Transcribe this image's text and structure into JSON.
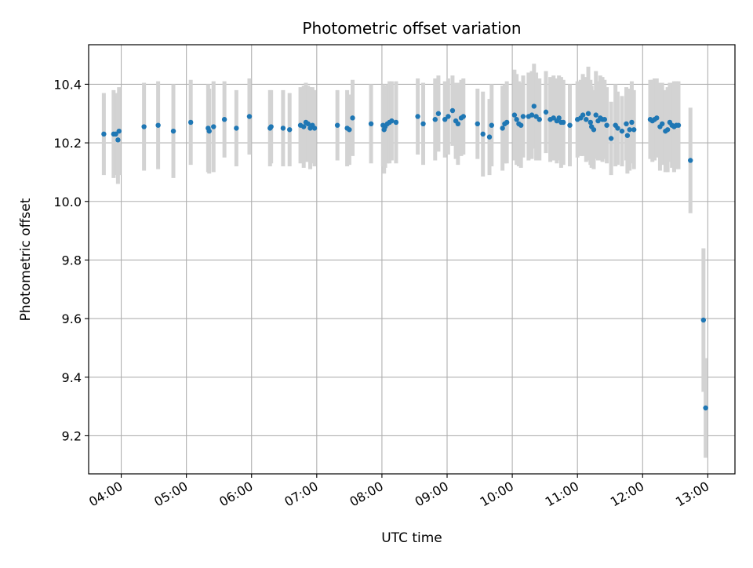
{
  "chart_data": {
    "type": "scatter",
    "title": "Photometric offset variation",
    "xlabel": "UTC time",
    "ylabel": "Photometric offset",
    "x_unit": "hours UTC",
    "xlim": [
      "03:30",
      "13:25"
    ],
    "ylim": [
      9.07,
      10.535
    ],
    "x_ticks": [
      "04:00",
      "05:00",
      "06:00",
      "07:00",
      "08:00",
      "09:00",
      "10:00",
      "11:00",
      "12:00",
      "13:00"
    ],
    "y_ticks": [
      "9.2",
      "9.4",
      "9.6",
      "9.8",
      "10.0",
      "10.2",
      "10.4"
    ],
    "grid": true,
    "marker_color": "#1f77b4",
    "errorbar_color": "#d3d3d3",
    "series": [
      {
        "points": [
          {
            "x": "03:44",
            "y": 10.23,
            "err": 0.14
          },
          {
            "x": "03:53",
            "y": 10.23,
            "err": 0.15
          },
          {
            "x": "03:55",
            "y": 10.23,
            "err": 0.14
          },
          {
            "x": "03:57",
            "y": 10.21,
            "err": 0.15
          },
          {
            "x": "03:58",
            "y": 10.24,
            "err": 0.15
          },
          {
            "x": "04:21",
            "y": 10.255,
            "err": 0.15
          },
          {
            "x": "04:34",
            "y": 10.26,
            "err": 0.15
          },
          {
            "x": "04:48",
            "y": 10.24,
            "err": 0.16
          },
          {
            "x": "05:04",
            "y": 10.27,
            "err": 0.145
          },
          {
            "x": "05:20",
            "y": 10.25,
            "err": 0.15
          },
          {
            "x": "05:21",
            "y": 10.24,
            "err": 0.145
          },
          {
            "x": "05:25",
            "y": 10.255,
            "err": 0.155
          },
          {
            "x": "05:35",
            "y": 10.28,
            "err": 0.13
          },
          {
            "x": "05:46",
            "y": 10.25,
            "err": 0.13
          },
          {
            "x": "05:58",
            "y": 10.29,
            "err": 0.13
          },
          {
            "x": "06:17",
            "y": 10.25,
            "err": 0.13
          },
          {
            "x": "06:18",
            "y": 10.255,
            "err": 0.125
          },
          {
            "x": "06:29",
            "y": 10.25,
            "err": 0.13
          },
          {
            "x": "06:35",
            "y": 10.245,
            "err": 0.125
          },
          {
            "x": "06:45",
            "y": 10.26,
            "err": 0.13
          },
          {
            "x": "06:48",
            "y": 10.255,
            "err": 0.14
          },
          {
            "x": "06:50",
            "y": 10.27,
            "err": 0.135
          },
          {
            "x": "06:52",
            "y": 10.265,
            "err": 0.13
          },
          {
            "x": "06:54",
            "y": 10.25,
            "err": 0.14
          },
          {
            "x": "06:56",
            "y": 10.26,
            "err": 0.13
          },
          {
            "x": "06:58",
            "y": 10.25,
            "err": 0.13
          },
          {
            "x": "07:19",
            "y": 10.26,
            "err": 0.12
          },
          {
            "x": "07:28",
            "y": 10.25,
            "err": 0.13
          },
          {
            "x": "07:30",
            "y": 10.245,
            "err": 0.12
          },
          {
            "x": "07:33",
            "y": 10.285,
            "err": 0.13
          },
          {
            "x": "07:50",
            "y": 10.265,
            "err": 0.135
          },
          {
            "x": "08:01",
            "y": 10.26,
            "err": 0.14
          },
          {
            "x": "08:02",
            "y": 10.245,
            "err": 0.15
          },
          {
            "x": "08:03",
            "y": 10.255,
            "err": 0.14
          },
          {
            "x": "08:05",
            "y": 10.265,
            "err": 0.135
          },
          {
            "x": "08:07",
            "y": 10.27,
            "err": 0.14
          },
          {
            "x": "08:09",
            "y": 10.275,
            "err": 0.135
          },
          {
            "x": "08:13",
            "y": 10.27,
            "err": 0.14
          },
          {
            "x": "08:33",
            "y": 10.29,
            "err": 0.13
          },
          {
            "x": "08:38",
            "y": 10.265,
            "err": 0.14
          },
          {
            "x": "08:49",
            "y": 10.28,
            "err": 0.14
          },
          {
            "x": "08:52",
            "y": 10.3,
            "err": 0.13
          },
          {
            "x": "08:58",
            "y": 10.28,
            "err": 0.13
          },
          {
            "x": "09:01",
            "y": 10.29,
            "err": 0.13
          },
          {
            "x": "09:05",
            "y": 10.31,
            "err": 0.12
          },
          {
            "x": "09:08",
            "y": 10.275,
            "err": 0.13
          },
          {
            "x": "09:10",
            "y": 10.265,
            "err": 0.14
          },
          {
            "x": "09:13",
            "y": 10.285,
            "err": 0.13
          },
          {
            "x": "09:15",
            "y": 10.29,
            "err": 0.13
          },
          {
            "x": "09:28",
            "y": 10.265,
            "err": 0.12
          },
          {
            "x": "09:33",
            "y": 10.23,
            "err": 0.145
          },
          {
            "x": "09:39",
            "y": 10.22,
            "err": 0.13
          },
          {
            "x": "09:41",
            "y": 10.26,
            "err": 0.14
          },
          {
            "x": "09:51",
            "y": 10.25,
            "err": 0.145
          },
          {
            "x": "09:53",
            "y": 10.265,
            "err": 0.135
          },
          {
            "x": "09:55",
            "y": 10.27,
            "err": 0.14
          },
          {
            "x": "10:02",
            "y": 10.295,
            "err": 0.155
          },
          {
            "x": "10:04",
            "y": 10.28,
            "err": 0.155
          },
          {
            "x": "10:06",
            "y": 10.265,
            "err": 0.145
          },
          {
            "x": "10:08",
            "y": 10.26,
            "err": 0.145
          },
          {
            "x": "10:10",
            "y": 10.29,
            "err": 0.14
          },
          {
            "x": "10:15",
            "y": 10.29,
            "err": 0.15
          },
          {
            "x": "10:18",
            "y": 10.295,
            "err": 0.15
          },
          {
            "x": "10:20",
            "y": 10.325,
            "err": 0.145
          },
          {
            "x": "10:22",
            "y": 10.29,
            "err": 0.15
          },
          {
            "x": "10:25",
            "y": 10.28,
            "err": 0.14
          },
          {
            "x": "10:31",
            "y": 10.305,
            "err": 0.14
          },
          {
            "x": "10:35",
            "y": 10.28,
            "err": 0.145
          },
          {
            "x": "10:38",
            "y": 10.285,
            "err": 0.145
          },
          {
            "x": "10:41",
            "y": 10.275,
            "err": 0.145
          },
          {
            "x": "10:43",
            "y": 10.285,
            "err": 0.145
          },
          {
            "x": "10:45",
            "y": 10.27,
            "err": 0.155
          },
          {
            "x": "10:47",
            "y": 10.27,
            "err": 0.145
          },
          {
            "x": "10:53",
            "y": 10.26,
            "err": 0.14
          },
          {
            "x": "11:00",
            "y": 10.28,
            "err": 0.13
          },
          {
            "x": "11:03",
            "y": 10.285,
            "err": 0.13
          },
          {
            "x": "11:05",
            "y": 10.295,
            "err": 0.14
          },
          {
            "x": "11:08",
            "y": 10.28,
            "err": 0.145
          },
          {
            "x": "11:10",
            "y": 10.3,
            "err": 0.16
          },
          {
            "x": "11:12",
            "y": 10.27,
            "err": 0.145
          },
          {
            "x": "11:13",
            "y": 10.255,
            "err": 0.14
          },
          {
            "x": "11:15",
            "y": 10.245,
            "err": 0.135
          },
          {
            "x": "11:17",
            "y": 10.295,
            "err": 0.15
          },
          {
            "x": "11:19",
            "y": 10.275,
            "err": 0.135
          },
          {
            "x": "11:21",
            "y": 10.285,
            "err": 0.145
          },
          {
            "x": "11:23",
            "y": 10.28,
            "err": 0.145
          },
          {
            "x": "11:25",
            "y": 10.28,
            "err": 0.135
          },
          {
            "x": "11:27",
            "y": 10.26,
            "err": 0.13
          },
          {
            "x": "11:31",
            "y": 10.215,
            "err": 0.125
          },
          {
            "x": "11:35",
            "y": 10.26,
            "err": 0.14
          },
          {
            "x": "11:37",
            "y": 10.25,
            "err": 0.125
          },
          {
            "x": "11:41",
            "y": 10.24,
            "err": 0.12
          },
          {
            "x": "11:45",
            "y": 10.265,
            "err": 0.125
          },
          {
            "x": "11:46",
            "y": 10.225,
            "err": 0.13
          },
          {
            "x": "11:48",
            "y": 10.245,
            "err": 0.14
          },
          {
            "x": "11:50",
            "y": 10.27,
            "err": 0.14
          },
          {
            "x": "11:52",
            "y": 10.245,
            "err": 0.135
          },
          {
            "x": "12:07",
            "y": 10.28,
            "err": 0.135
          },
          {
            "x": "12:09",
            "y": 10.275,
            "err": 0.14
          },
          {
            "x": "12:11",
            "y": 10.28,
            "err": 0.14
          },
          {
            "x": "12:13",
            "y": 10.285,
            "err": 0.135
          },
          {
            "x": "12:16",
            "y": 10.255,
            "err": 0.15
          },
          {
            "x": "12:18",
            "y": 10.265,
            "err": 0.14
          },
          {
            "x": "12:21",
            "y": 10.24,
            "err": 0.14
          },
          {
            "x": "12:23",
            "y": 10.245,
            "err": 0.145
          },
          {
            "x": "12:25",
            "y": 10.27,
            "err": 0.135
          },
          {
            "x": "12:27",
            "y": 10.26,
            "err": 0.145
          },
          {
            "x": "12:29",
            "y": 10.255,
            "err": 0.155
          },
          {
            "x": "12:31",
            "y": 10.26,
            "err": 0.15
          },
          {
            "x": "12:33",
            "y": 10.26,
            "err": 0.15
          },
          {
            "x": "12:44",
            "y": 10.14,
            "err": 0.18
          },
          {
            "x": "12:56",
            "y": 9.595,
            "err": 0.245
          },
          {
            "x": "12:58",
            "y": 9.295,
            "err": 0.17
          }
        ]
      }
    ]
  }
}
